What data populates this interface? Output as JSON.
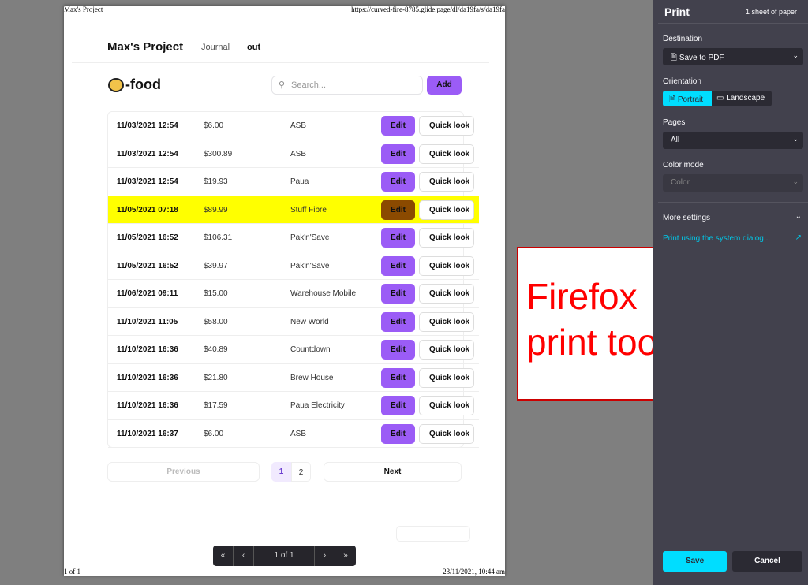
{
  "page_header": {
    "title": "Max's Project",
    "url": "https://curved-fire-8785.glide.page/dl/da19fa/s/da19fa",
    "page_count": "1 of 1",
    "date": "23/11/2021, 10:44 am"
  },
  "app": {
    "brand": "Max's Project",
    "nav": [
      "Journal",
      "out"
    ],
    "title": "-food",
    "search_placeholder": "Search...",
    "add_label": "Add",
    "edit_label": "Edit",
    "quicklook_label": "Quick look"
  },
  "rows": [
    {
      "date": "11/03/2021 12:54",
      "amount": "$6.00",
      "store": "ASB"
    },
    {
      "date": "11/03/2021 12:54",
      "amount": "$300.89",
      "store": "ASB"
    },
    {
      "date": "11/03/2021 12:54",
      "amount": "$19.93",
      "store": "Paua"
    },
    {
      "date": "11/05/2021 07:18",
      "amount": "$89.99",
      "store": "Stuff Fibre",
      "highlighted": true
    },
    {
      "date": "11/05/2021 16:52",
      "amount": "$106.31",
      "store": "Pak'n'Save"
    },
    {
      "date": "11/05/2021 16:52",
      "amount": "$39.97",
      "store": "Pak'n'Save"
    },
    {
      "date": "11/06/2021 09:11",
      "amount": "$15.00",
      "store": "Warehouse Mobile"
    },
    {
      "date": "11/10/2021 11:05",
      "amount": "$58.00",
      "store": "New World"
    },
    {
      "date": "11/10/2021 16:36",
      "amount": "$40.89",
      "store": "Countdown"
    },
    {
      "date": "11/10/2021 16:36",
      "amount": "$21.80",
      "store": "Brew House"
    },
    {
      "date": "11/10/2021 16:36",
      "amount": "$17.59",
      "store": "Paua Electricity"
    },
    {
      "date": "11/10/2021 16:37",
      "amount": "$6.00",
      "store": "ASB"
    }
  ],
  "pagination": {
    "previous": "Previous",
    "pages": [
      "1",
      "2"
    ],
    "current": "1",
    "next": "Next"
  },
  "viewer": {
    "first": "«",
    "prev": "‹",
    "status": "1 of 1",
    "next": "›",
    "last": "»"
  },
  "print": {
    "title": "Print",
    "sheets": "1 sheet of paper",
    "destination_label": "Destination",
    "destination": "Save to PDF",
    "orientation_label": "Orientation",
    "portrait": "Portrait",
    "landscape": "Landscape",
    "pages_label": "Pages",
    "pages": "All",
    "color_label": "Color mode",
    "color": "Color",
    "more_settings": "More settings",
    "system_dialog": "Print using the system dialog...",
    "save": "Save",
    "cancel": "Cancel"
  },
  "annotation": {
    "line1": "Firefox",
    "line2": "print tool"
  },
  "colors": {
    "accent": "#9b5cf6",
    "highlight": "#ffff00",
    "firefox_accent": "#00ddff"
  }
}
